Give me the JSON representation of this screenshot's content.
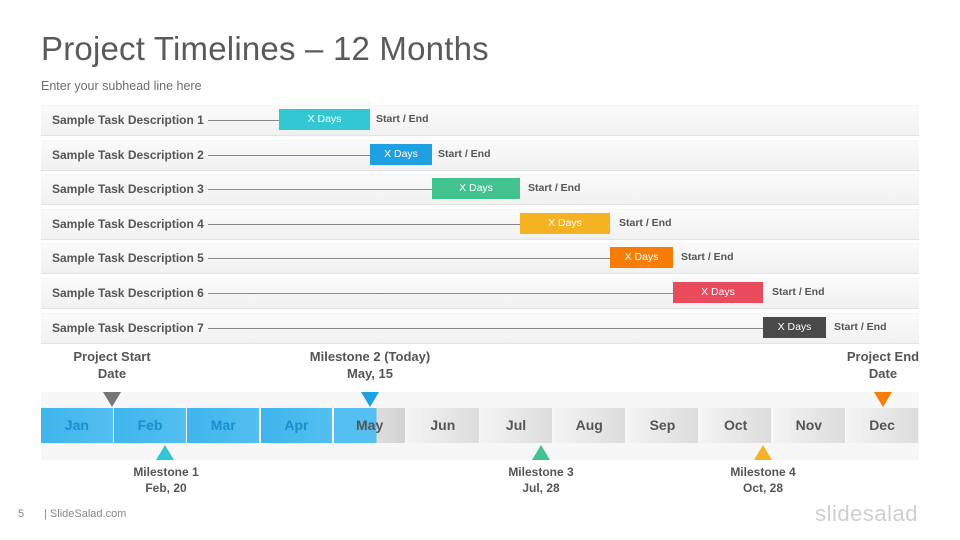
{
  "slide": {
    "title": "Project Timelines – 12 Months",
    "subhead": "Enter your subhead  line here",
    "page_number": "5",
    "footer_site": "| SlideSalad.com",
    "brand": "slidesalad"
  },
  "tasks": [
    {
      "label": "Sample Task Description 1",
      "bar_text": "X Days",
      "end_text": "Start / End",
      "color": "#33c6d3"
    },
    {
      "label": "Sample Task Description 2",
      "bar_text": "X Days",
      "end_text": "Start / End",
      "color": "#1ea0e2"
    },
    {
      "label": "Sample Task Description 3",
      "bar_text": "X Days",
      "end_text": "Start / End",
      "color": "#41c28f"
    },
    {
      "label": "Sample Task Description 4",
      "bar_text": "X Days",
      "end_text": "Start / End",
      "color": "#f5b223"
    },
    {
      "label": "Sample Task Description 5",
      "bar_text": "X Days",
      "end_text": "Start / End",
      "color": "#f77d07"
    },
    {
      "label": "Sample Task Description 6",
      "bar_text": "X Days",
      "end_text": "Start / End",
      "color": "#e84b5c"
    },
    {
      "label": "Sample Task Description 7",
      "bar_text": "X Days",
      "end_text": "Start / End",
      "color": "#4a4a4a"
    }
  ],
  "months": [
    "Jan",
    "Feb",
    "Mar",
    "Apr",
    "May",
    "Jun",
    "Jul",
    "Aug",
    "Sep",
    "Oct",
    "Nov",
    "Dec"
  ],
  "milestones_top": {
    "start": {
      "line1": "Project Start",
      "line2": "Date",
      "color": "#777777"
    },
    "today": {
      "line1": "Milestone 2 (Today)",
      "line2": "May, 15",
      "color": "#1ea0e2"
    },
    "end": {
      "line1": "Project End",
      "line2": "Date",
      "color": "#f77d07"
    }
  },
  "milestones_bottom": {
    "m1": {
      "line1": "Milestone  1",
      "line2": "Feb, 20",
      "color": "#33c6d3"
    },
    "m3": {
      "line1": "Milestone  3",
      "line2": "Jul, 28",
      "color": "#41c28f"
    },
    "m4": {
      "line1": "Milestone  4",
      "line2": "Oct, 28",
      "color": "#f5b223"
    }
  }
}
